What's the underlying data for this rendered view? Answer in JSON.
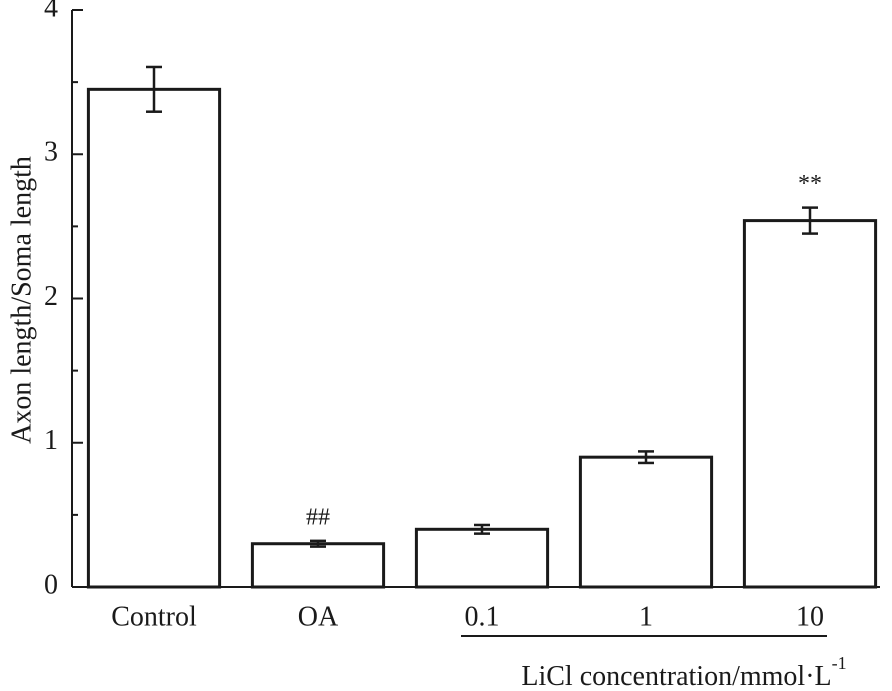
{
  "chart_data": {
    "type": "bar",
    "y_label": "Axon length/Soma length",
    "categories": [
      "Control",
      "OA",
      "0.1",
      "1",
      "10"
    ],
    "values": [
      3.45,
      0.3,
      0.4,
      0.9,
      2.54
    ],
    "errors": [
      0.155,
      0.02,
      0.03,
      0.04,
      0.09
    ],
    "significance": [
      null,
      "##",
      null,
      null,
      "**"
    ],
    "x_group": {
      "label": "LiCl concentration/mmol·L",
      "superscript": "-1",
      "categories": [
        "0.1",
        "1",
        "10"
      ]
    },
    "color": "#ffffff",
    "edge_color": "#1a1a1a",
    "ylim": [
      0,
      4
    ],
    "yticks": [
      0,
      1,
      2,
      3,
      4
    ],
    "grid": false
  }
}
